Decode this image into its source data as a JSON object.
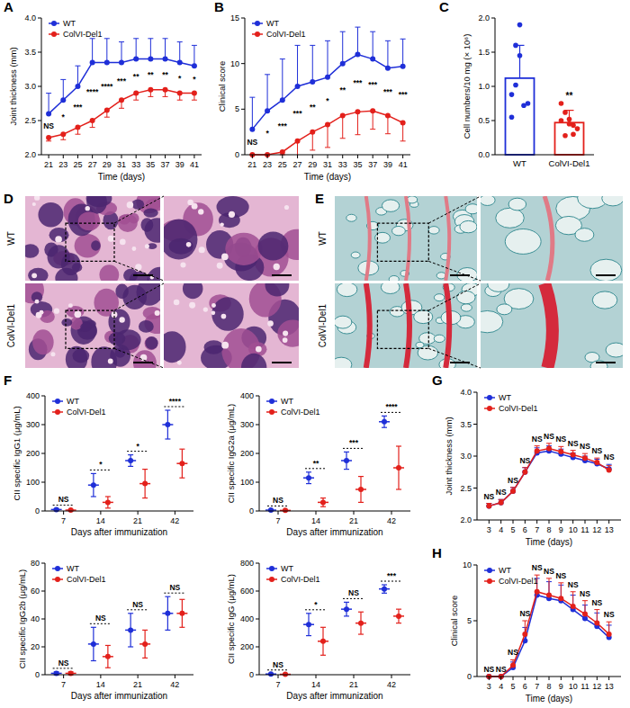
{
  "chart_data": [
    {
      "panel": "A",
      "type": "line",
      "xlabel": "Time (days)",
      "ylabel": "Joint thickness (mm)",
      "legend": "top-left",
      "x": [
        21,
        23,
        25,
        27,
        29,
        31,
        33,
        35,
        37,
        39,
        41
      ],
      "xlim": [
        20,
        42
      ],
      "xticks": [
        21,
        23,
        25,
        27,
        29,
        31,
        33,
        35,
        37,
        39,
        41
      ],
      "ylim": [
        2,
        4
      ],
      "yticks": [
        {
          "value": 2,
          "label": "2.0"
        },
        {
          "value": 2.5,
          "label": "2.5"
        },
        {
          "value": 3,
          "label": "3.0"
        },
        {
          "value": 3.5,
          "label": "3.5"
        },
        {
          "value": 4,
          "label": "4.0"
        }
      ],
      "series": [
        {
          "name": "WT",
          "color": "#1f2fd8",
          "marker": "circle",
          "values": [
            2.6,
            2.8,
            3.0,
            3.35,
            3.35,
            3.35,
            3.4,
            3.4,
            3.4,
            3.35,
            3.3
          ],
          "errors": [
            0.3,
            0.3,
            0.3,
            0.35,
            0.35,
            0.3,
            0.3,
            0.3,
            0.3,
            0.3,
            0.3
          ]
        },
        {
          "name": "ColVI-Del1",
          "color": "#e3201b",
          "marker": "circle",
          "values": [
            2.25,
            2.3,
            2.4,
            2.5,
            2.65,
            2.8,
            2.9,
            2.95,
            2.95,
            2.9,
            2.9
          ],
          "errors": [
            0.05,
            0.08,
            0.1,
            0.1,
            0.1,
            0.12,
            0.1,
            0.1,
            0.1,
            0.1,
            0.1
          ]
        }
      ],
      "annotations": [
        "NS",
        "*",
        "***",
        "****",
        "****",
        "***",
        "**",
        "**",
        "**",
        "*",
        "*"
      ]
    },
    {
      "panel": "B",
      "type": "line",
      "xlabel": "Time (days)",
      "ylabel": "Clinical score",
      "legend": "top-left",
      "x": [
        21,
        23,
        25,
        27,
        29,
        31,
        33,
        35,
        37,
        39,
        41
      ],
      "xlim": [
        20,
        42
      ],
      "xticks": [
        21,
        23,
        25,
        27,
        29,
        31,
        33,
        35,
        37,
        39,
        41
      ],
      "ylim": [
        0,
        15
      ],
      "yticks": [
        0,
        5,
        10,
        15
      ],
      "series": [
        {
          "name": "WT",
          "color": "#1f2fd8",
          "marker": "circle",
          "values": [
            2.8,
            4.8,
            6.0,
            7.5,
            8.0,
            8.5,
            10.0,
            11.0,
            10.5,
            9.5,
            9.7
          ],
          "errors": [
            3.5,
            4,
            4.5,
            4.5,
            4,
            4,
            3.5,
            3,
            3,
            3,
            3
          ]
        },
        {
          "name": "ColVI-Del1",
          "color": "#e3201b",
          "marker": "circle",
          "values": [
            0,
            0,
            0.3,
            1.5,
            2.5,
            3.3,
            4.3,
            4.7,
            4.8,
            4.3,
            3.5
          ],
          "errors": [
            0,
            0,
            0.3,
            2,
            2,
            2.5,
            2.5,
            2.5,
            2,
            2,
            2
          ]
        }
      ],
      "annotations": [
        "NS",
        "*",
        "***",
        "***",
        "**",
        "*",
        "**",
        "***",
        "***",
        "***",
        "***"
      ]
    },
    {
      "panel": "C",
      "type": "bar",
      "ylabel": "Cell numbers/10 mg (× 10⁶)",
      "categories": [
        "WT",
        "ColVI-Del1"
      ],
      "values": [
        1.12,
        0.47
      ],
      "errors": [
        0.48,
        0.18
      ],
      "colors": [
        "#1f2fd8",
        "#e3201b"
      ],
      "points": [
        [
          0.88,
          1.6,
          1.45,
          0.72,
          0.75,
          0.55,
          1.02,
          1.9
        ],
        [
          0.5,
          0.62,
          0.45,
          0.3,
          0.38,
          0.75,
          0.28,
          0.52,
          0.43
        ]
      ],
      "ylim": [
        0,
        2
      ],
      "yticks": [
        {
          "value": 0,
          "label": "0.0"
        },
        {
          "value": 0.5,
          "label": "0.5"
        },
        {
          "value": 1,
          "label": "1.0"
        },
        {
          "value": 1.5,
          "label": "1.5"
        },
        {
          "value": 2,
          "label": "2.0"
        }
      ],
      "annotation": "**"
    },
    {
      "panel": "F",
      "type": "dot",
      "xlabel": "Days after immunization",
      "ylabel": "CII specific IgG1 (μg/mL)",
      "legend": "top-left",
      "categories": [
        "7",
        "14",
        "21",
        "42"
      ],
      "ylim": [
        0,
        400
      ],
      "yticks": [
        0,
        100,
        200,
        300,
        400
      ],
      "series": [
        {
          "name": "WT",
          "color": "#1f2fd8",
          "marker": "circle",
          "values": [
            5,
            90,
            175,
            300
          ],
          "errors": [
            3,
            40,
            20,
            50
          ]
        },
        {
          "name": "ColVI-Del1",
          "color": "#e3201b",
          "marker": "circle",
          "values": [
            3,
            30,
            95,
            165
          ],
          "errors": [
            2,
            20,
            50,
            50
          ]
        }
      ],
      "annotations": [
        "NS",
        "*",
        "*",
        "****"
      ]
    },
    {
      "type": "dot",
      "xlabel": "Days after immunization",
      "ylabel": "CII specific IgG2a (μg/mL)",
      "legend": "top-left",
      "categories": [
        "7",
        "14",
        "21",
        "42"
      ],
      "ylim": [
        0,
        400
      ],
      "yticks": [
        0,
        100,
        200,
        300,
        400
      ],
      "series": [
        {
          "name": "WT",
          "color": "#1f2fd8",
          "marker": "circle",
          "values": [
            3,
            115,
            175,
            310
          ],
          "errors": [
            2,
            20,
            30,
            20
          ]
        },
        {
          "name": "ColVI-Del1",
          "color": "#e3201b",
          "marker": "circle",
          "values": [
            2,
            30,
            75,
            150
          ],
          "errors": [
            1,
            15,
            45,
            75
          ]
        }
      ],
      "annotations": [
        "NS",
        "**",
        "***",
        "****"
      ]
    },
    {
      "type": "dot",
      "xlabel": "Days after immunization",
      "ylabel": "CII specific IgG2b (μg/mL)",
      "legend": "top-left",
      "categories": [
        "7",
        "14",
        "21",
        "42"
      ],
      "ylim": [
        0,
        80
      ],
      "yticks": [
        0,
        20,
        40,
        60,
        80
      ],
      "series": [
        {
          "name": "WT",
          "color": "#1f2fd8",
          "marker": "circle",
          "values": [
            1,
            22,
            32,
            44
          ],
          "errors": [
            1,
            12,
            12,
            12
          ]
        },
        {
          "name": "ColVI-Del1",
          "color": "#e3201b",
          "marker": "circle",
          "values": [
            1,
            13,
            22,
            44
          ],
          "errors": [
            1,
            8,
            10,
            10
          ]
        }
      ],
      "annotations": [
        "NS",
        "NS",
        "NS",
        "NS"
      ]
    },
    {
      "type": "dot",
      "xlabel": "Days after immunization",
      "ylabel": "CII specific IgG (μg/mL)",
      "legend": "top-left",
      "categories": [
        "7",
        "14",
        "21",
        "42"
      ],
      "ylim": [
        0,
        800
      ],
      "yticks": [
        0,
        200,
        400,
        600,
        800
      ],
      "series": [
        {
          "name": "WT",
          "color": "#1f2fd8",
          "marker": "circle",
          "values": [
            5,
            360,
            470,
            615
          ],
          "errors": [
            3,
            80,
            50,
            30
          ]
        },
        {
          "name": "ColVI-Del1",
          "color": "#e3201b",
          "marker": "circle",
          "values": [
            3,
            240,
            370,
            420
          ],
          "errors": [
            2,
            100,
            80,
            50
          ]
        }
      ],
      "annotations": [
        "NS",
        "*",
        "NS",
        "***"
      ]
    },
    {
      "panel": "G",
      "type": "line",
      "xlabel": "Time (days)",
      "ylabel": "Joint thickness (mm)",
      "legend": "top-left",
      "x": [
        3,
        4,
        5,
        6,
        7,
        8,
        9,
        10,
        11,
        12,
        13
      ],
      "xlim": [
        2,
        14
      ],
      "xticks": [
        3,
        4,
        5,
        6,
        7,
        8,
        9,
        10,
        11,
        12,
        13
      ],
      "ylim": [
        2,
        4
      ],
      "yticks": [
        {
          "value": 2,
          "label": "2.0"
        },
        {
          "value": 2.5,
          "label": "2.5"
        },
        {
          "value": 3,
          "label": "3.0"
        },
        {
          "value": 3.5,
          "label": "3.5"
        },
        {
          "value": 4,
          "label": "4.0"
        }
      ],
      "series": [
        {
          "name": "WT",
          "color": "#1f2fd8",
          "marker": "circle",
          "values": [
            2.22,
            2.27,
            2.45,
            2.75,
            3.05,
            3.08,
            3.03,
            2.98,
            2.93,
            2.88,
            2.8
          ],
          "errors": [
            0.04,
            0.05,
            0.06,
            0.07,
            0.08,
            0.08,
            0.08,
            0.07,
            0.07,
            0.07,
            0.07
          ]
        },
        {
          "name": "ColVI-Del1",
          "color": "#e3201b",
          "marker": "circle",
          "values": [
            2.22,
            2.27,
            2.45,
            2.75,
            3.08,
            3.12,
            3.07,
            3.02,
            2.97,
            2.9,
            2.78
          ],
          "errors": [
            0.04,
            0.05,
            0.06,
            0.07,
            0.08,
            0.08,
            0.08,
            0.07,
            0.07,
            0.07,
            0.07
          ]
        }
      ],
      "annotations": [
        "NS",
        "NS",
        "NS",
        "NS",
        "NS",
        "NS",
        "NS",
        "NS",
        "NS",
        "NS",
        "NS"
      ]
    },
    {
      "panel": "H",
      "type": "line",
      "xlabel": "Time (days)",
      "ylabel": "Clinical score",
      "legend": "top-left",
      "x": [
        3,
        4,
        5,
        6,
        7,
        8,
        9,
        10,
        11,
        12,
        13
      ],
      "xlim": [
        2,
        14
      ],
      "xticks": [
        3,
        4,
        5,
        6,
        7,
        8,
        9,
        10,
        11,
        12,
        13
      ],
      "ylim": [
        0,
        10
      ],
      "yticks": [
        0,
        5,
        10
      ],
      "series": [
        {
          "name": "WT",
          "color": "#1f2fd8",
          "marker": "circle",
          "values": [
            0,
            0,
            0.8,
            3.2,
            7.3,
            7.0,
            6.8,
            6.0,
            5.2,
            4.5,
            3.5
          ],
          "errors": [
            0,
            0,
            0.5,
            1.2,
            1.5,
            1.5,
            1.4,
            1.3,
            1.2,
            1.2,
            1.1
          ]
        },
        {
          "name": "ColVI-Del1",
          "color": "#e3201b",
          "marker": "circle",
          "values": [
            0,
            0,
            1.0,
            3.8,
            7.6,
            7.3,
            7.0,
            6.3,
            5.6,
            4.8,
            3.8
          ],
          "errors": [
            0,
            0,
            0.5,
            1.2,
            1.5,
            1.5,
            1.4,
            1.3,
            1.2,
            1.2,
            1.1
          ]
        }
      ],
      "annotations": [
        "NS",
        "NS",
        "NS",
        "NS",
        "NS",
        "NS",
        "NS",
        "NS",
        "NS",
        "NS",
        "NS"
      ]
    }
  ],
  "images": [
    {
      "panel": "D",
      "rows": [
        "WT",
        "ColVI-Del1"
      ]
    },
    {
      "panel": "E",
      "rows": [
        "WT",
        "ColVI-Del1"
      ]
    }
  ]
}
